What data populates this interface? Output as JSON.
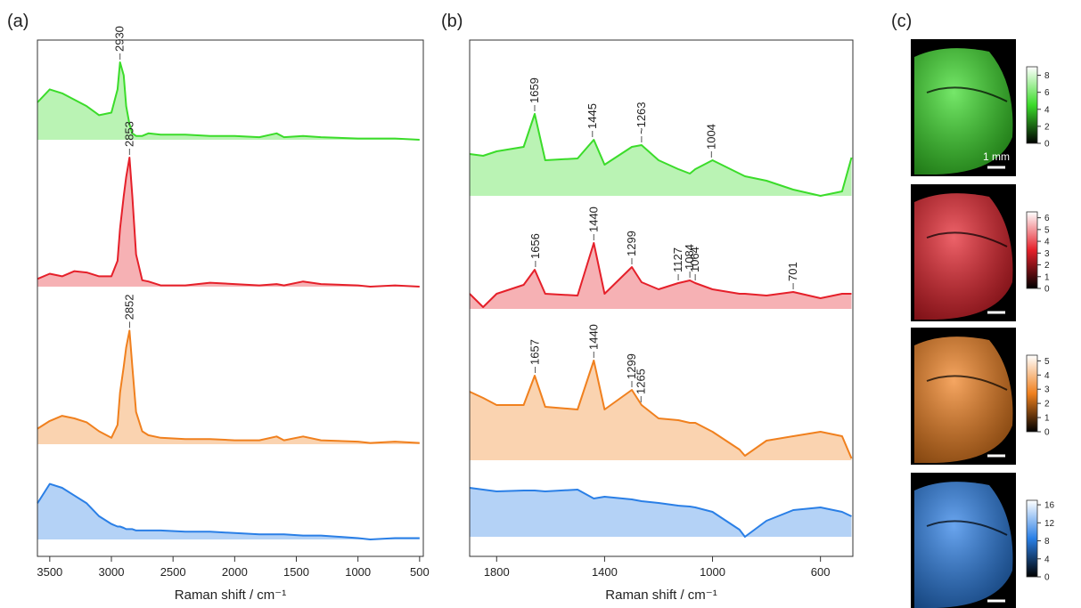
{
  "chart_data": [
    {
      "type": "line",
      "panel_label": "(a)",
      "x_label": "Raman shift / cm⁻¹",
      "xlim": [
        3600,
        470
      ],
      "xticks": [
        3500,
        3000,
        2500,
        2000,
        1500,
        1000,
        500
      ],
      "x": [
        3600,
        3500,
        3400,
        3300,
        3200,
        3100,
        3000,
        2950,
        2930,
        2900,
        2880,
        2853,
        2830,
        2800,
        2750,
        2700,
        2600,
        2400,
        2200,
        2000,
        1800,
        1660,
        1600,
        1445,
        1300,
        1000,
        900,
        700,
        500
      ],
      "series": [
        {
          "color": "#3bdc2a",
          "values": [
            0.29,
            0.39,
            0.36,
            0.31,
            0.26,
            0.19,
            0.21,
            0.39,
            0.6,
            0.5,
            0.26,
            0.12,
            0.05,
            0.03,
            0.03,
            0.05,
            0.04,
            0.04,
            0.03,
            0.03,
            0.02,
            0.05,
            0.02,
            0.03,
            0.02,
            0.01,
            0.01,
            0.01,
            0
          ],
          "annotations": [
            {
              "label": "2930",
              "x": 2930
            }
          ]
        },
        {
          "color": "#e5202a",
          "values": [
            0.06,
            0.1,
            0.08,
            0.12,
            0.11,
            0.08,
            0.08,
            0.2,
            0.45,
            0.7,
            0.85,
            1.0,
            0.7,
            0.25,
            0.05,
            0.04,
            0.01,
            0.01,
            0.03,
            0.02,
            0.01,
            0.02,
            0.01,
            0.04,
            0.02,
            0.01,
            0,
            0.01,
            0
          ],
          "annotations": [
            {
              "label": "2853",
              "x": 2853
            }
          ]
        },
        {
          "color": "#f0801e",
          "values": [
            0.12,
            0.18,
            0.22,
            0.2,
            0.17,
            0.1,
            0.05,
            0.15,
            0.4,
            0.6,
            0.75,
            0.88,
            0.6,
            0.25,
            0.1,
            0.07,
            0.05,
            0.04,
            0.04,
            0.03,
            0.03,
            0.06,
            0.03,
            0.06,
            0.03,
            0.02,
            0.01,
            0.02,
            0.01
          ],
          "annotations": [
            {
              "label": "2852",
              "x": 2852
            }
          ]
        },
        {
          "color": "#2a7fe6",
          "values": [
            0.28,
            0.43,
            0.4,
            0.34,
            0.28,
            0.18,
            0.12,
            0.1,
            0.1,
            0.09,
            0.08,
            0.08,
            0.08,
            0.07,
            0.07,
            0.07,
            0.07,
            0.06,
            0.06,
            0.05,
            0.04,
            0.04,
            0.04,
            0.03,
            0.03,
            0.01,
            0,
            0.01,
            0.01
          ],
          "annotations": []
        }
      ]
    },
    {
      "type": "line",
      "panel_label": "(b)",
      "x_label": "Raman shift / cm⁻¹",
      "xlim": [
        1900,
        480
      ],
      "xticks": [
        1800,
        1400,
        1000,
        600
      ],
      "x": [
        1900,
        1850,
        1800,
        1700,
        1659,
        1620,
        1500,
        1440,
        1400,
        1299,
        1263,
        1200,
        1127,
        1084,
        1064,
        1000,
        900,
        880,
        800,
        701,
        600,
        520,
        485
      ],
      "series": [
        {
          "color": "#3bdc2a",
          "values": [
            0.47,
            0.45,
            0.5,
            0.55,
            0.92,
            0.4,
            0.42,
            0.63,
            0.35,
            0.55,
            0.57,
            0.4,
            0.3,
            0.25,
            0.3,
            0.4,
            0.25,
            0.22,
            0.17,
            0.07,
            0,
            0.05,
            0.43
          ],
          "annotations": [
            {
              "label": "1659",
              "x": 1659
            },
            {
              "label": "1445",
              "x": 1445
            },
            {
              "label": "~1263",
              "x": 1263
            },
            {
              "label": "1004",
              "x": 1004
            }
          ]
        },
        {
          "color": "#e5202a",
          "values": [
            0.17,
            0.02,
            0.17,
            0.27,
            0.44,
            0.17,
            0.15,
            0.74,
            0.17,
            0.47,
            0.3,
            0.22,
            0.29,
            0.32,
            0.29,
            0.22,
            0.17,
            0.17,
            0.15,
            0.19,
            0.12,
            0.17,
            0.17
          ],
          "annotations": [
            {
              "label": "1656",
              "x": 1656
            },
            {
              "label": "1440",
              "x": 1440
            },
            {
              "label": "1299",
              "x": 1299
            },
            {
              "label": "1127",
              "x": 1127
            },
            {
              "label": "1084",
              "x": 1084
            },
            {
              "label": "1064",
              "x": 1064
            },
            {
              "label": "701",
              "x": 701
            }
          ]
        },
        {
          "color": "#f0801e",
          "values": [
            0.77,
            0.7,
            0.62,
            0.62,
            0.95,
            0.6,
            0.57,
            1.12,
            0.57,
            0.79,
            0.62,
            0.47,
            0.45,
            0.42,
            0.42,
            0.32,
            0.12,
            0.05,
            0.22,
            0.27,
            0.32,
            0.27,
            0.02
          ],
          "annotations": [
            {
              "label": "1657",
              "x": 1657
            },
            {
              "label": "1440",
              "x": 1440
            },
            {
              "label": "1299",
              "x": 1299
            },
            {
              "label": "1265",
              "x": 1265
            }
          ]
        },
        {
          "color": "#2a7fe6",
          "values": [
            0.55,
            0.53,
            0.51,
            0.52,
            0.52,
            0.51,
            0.53,
            0.43,
            0.45,
            0.42,
            0.4,
            0.38,
            0.35,
            0.34,
            0.33,
            0.28,
            0.08,
            0,
            0.18,
            0.3,
            0.33,
            0.28,
            0.23
          ],
          "annotations": []
        }
      ]
    },
    {
      "type": "image",
      "panel_label": "(c)",
      "scale_bar": "1 mm",
      "colorbars": [
        {
          "color": "#3bdc2a",
          "lim": [
            0,
            9
          ],
          "ticks": [
            0,
            2,
            4,
            6,
            8
          ]
        },
        {
          "color": "#e5202a",
          "lim": [
            0,
            6.5
          ],
          "ticks": [
            0,
            1,
            2,
            3,
            4,
            5,
            6
          ]
        },
        {
          "color": "#f0801e",
          "lim": [
            0,
            5.4
          ],
          "ticks": [
            0,
            1,
            2,
            3,
            4,
            5
          ]
        },
        {
          "color": "#2a7fe6",
          "lim": [
            0,
            17
          ],
          "ticks": [
            0,
            4,
            8,
            12,
            16
          ]
        }
      ]
    }
  ]
}
